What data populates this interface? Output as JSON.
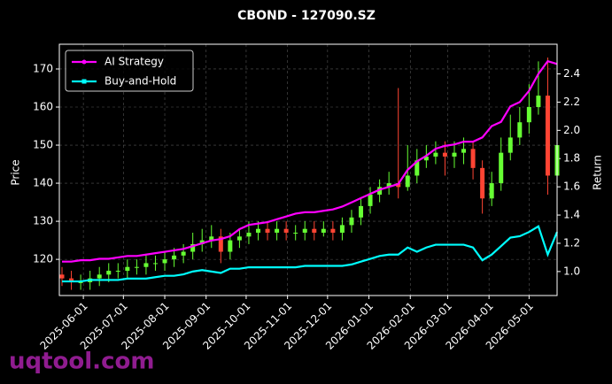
{
  "chart_data": {
    "type": "candlestick",
    "title": "CBOND - 127090.SZ",
    "ylabel": "Price",
    "y2label": "Return",
    "watermark": "uqtool.com",
    "grid": true,
    "legend": "upper left",
    "x": [
      "2025-05-16",
      "2025-05-23",
      "2025-05-30",
      "2025-06-06",
      "2025-06-13",
      "2025-06-20",
      "2025-06-27",
      "2025-07-04",
      "2025-07-11",
      "2025-07-18",
      "2025-07-25",
      "2025-08-01",
      "2025-08-08",
      "2025-08-15",
      "2025-08-22",
      "2025-08-29",
      "2025-09-05",
      "2025-09-12",
      "2025-09-19",
      "2025-09-26",
      "2025-10-03",
      "2025-10-10",
      "2025-10-17",
      "2025-10-24",
      "2025-10-31",
      "2025-11-07",
      "2025-11-14",
      "2025-11-21",
      "2025-11-28",
      "2025-12-05",
      "2025-12-12",
      "2025-12-19",
      "2025-12-26",
      "2026-01-02",
      "2026-01-09",
      "2026-01-16",
      "2026-01-23",
      "2026-01-30",
      "2026-02-06",
      "2026-02-13",
      "2026-02-20",
      "2026-02-27",
      "2026-03-06",
      "2026-03-13",
      "2026-03-20",
      "2026-03-27",
      "2026-04-03",
      "2026-04-10",
      "2026-04-17",
      "2026-04-24",
      "2026-05-01",
      "2026-05-08",
      "2026-05-15",
      "2026-05-22"
    ],
    "xlim": [
      "2025-05-14",
      "2026-05-22"
    ],
    "xticks": [
      "2025-06-01",
      "2025-07-01",
      "2025-08-01",
      "2025-09-01",
      "2025-10-01",
      "2025-11-01",
      "2025-12-01",
      "2026-01-01",
      "2026-02-01",
      "2026-03-01",
      "2026-04-01",
      "2026-05-01"
    ],
    "ylim": [
      110.5,
      176.5
    ],
    "yticks": [
      120,
      130,
      140,
      150,
      160,
      170
    ],
    "y2lim": [
      0.83,
      2.61
    ],
    "y2ticks": [
      {
        "value": 1,
        "label": "1.0"
      },
      1.2,
      1.4,
      1.6,
      1.8,
      {
        "value": 2,
        "label": "2.0"
      },
      2.2,
      2.4
    ],
    "up_color": "#66ff33",
    "down_color": "#ff4433",
    "open": [
      116,
      115,
      114,
      114,
      115,
      116,
      117,
      117,
      118,
      118,
      119,
      119,
      120,
      121,
      122,
      124,
      125,
      126,
      122,
      125,
      126,
      127,
      128,
      127,
      128,
      127,
      127,
      128,
      127,
      128,
      127,
      129,
      131,
      134,
      137,
      139,
      140,
      139,
      142,
      146,
      147,
      148,
      147,
      148,
      149,
      144,
      136,
      140,
      148,
      152,
      156,
      160,
      163,
      142
    ],
    "high": [
      118,
      117,
      116,
      117,
      118,
      119,
      119,
      120,
      120,
      121,
      121,
      122,
      123,
      124,
      127,
      128,
      129,
      128,
      127,
      128,
      130,
      130,
      130,
      130,
      130,
      129,
      130,
      130,
      130,
      130,
      131,
      133,
      136,
      139,
      141,
      143,
      165,
      150,
      149,
      150,
      151,
      151,
      151,
      152,
      151,
      146,
      143,
      152,
      158,
      160,
      166,
      172,
      173,
      165
    ],
    "low": [
      113,
      112,
      112,
      112,
      113,
      114,
      115,
      115,
      116,
      116,
      117,
      117,
      118,
      119,
      120,
      122,
      123,
      119,
      120,
      123,
      124,
      125,
      125,
      125,
      125,
      125,
      125,
      125,
      126,
      125,
      125,
      127,
      129,
      132,
      135,
      137,
      136,
      138,
      140,
      144,
      145,
      142,
      144,
      145,
      141,
      132,
      134,
      138,
      146,
      150,
      153,
      158,
      137,
      138
    ],
    "close": [
      115,
      114,
      114,
      115,
      116,
      117,
      117,
      118,
      118,
      119,
      119,
      120,
      121,
      122,
      124,
      125,
      126,
      122,
      125,
      126,
      127,
      128,
      127,
      128,
      127,
      127,
      128,
      127,
      128,
      127,
      129,
      131,
      134,
      137,
      139,
      140,
      139,
      142,
      146,
      147,
      148,
      147,
      148,
      149,
      144,
      136,
      140,
      148,
      152,
      156,
      160,
      163,
      142,
      150
    ],
    "series": [
      {
        "name": "AI Strategy",
        "color": "#ff00ff",
        "axis": "y2",
        "marker": "circle",
        "values": [
          1.07,
          1.07,
          1.08,
          1.08,
          1.09,
          1.09,
          1.1,
          1.11,
          1.11,
          1.12,
          1.13,
          1.14,
          1.15,
          1.16,
          1.18,
          1.2,
          1.22,
          1.23,
          1.25,
          1.3,
          1.33,
          1.34,
          1.35,
          1.37,
          1.39,
          1.41,
          1.42,
          1.42,
          1.43,
          1.44,
          1.46,
          1.49,
          1.52,
          1.55,
          1.58,
          1.6,
          1.62,
          1.72,
          1.78,
          1.82,
          1.87,
          1.89,
          1.9,
          1.92,
          1.92,
          1.95,
          2.03,
          2.06,
          2.17,
          2.2,
          2.28,
          2.4,
          2.49,
          2.47
        ]
      },
      {
        "name": "Buy-and-Hold",
        "color": "#00ffff",
        "axis": "y2",
        "marker": "square",
        "values": [
          0.93,
          0.93,
          0.93,
          0.94,
          0.94,
          0.94,
          0.94,
          0.95,
          0.95,
          0.95,
          0.96,
          0.97,
          0.97,
          0.98,
          1.0,
          1.01,
          1.0,
          0.99,
          1.02,
          1.02,
          1.03,
          1.03,
          1.03,
          1.03,
          1.03,
          1.03,
          1.04,
          1.04,
          1.04,
          1.04,
          1.04,
          1.05,
          1.07,
          1.09,
          1.11,
          1.12,
          1.12,
          1.17,
          1.14,
          1.17,
          1.19,
          1.19,
          1.19,
          1.19,
          1.17,
          1.08,
          1.12,
          1.18,
          1.24,
          1.25,
          1.28,
          1.32,
          1.12,
          1.28
        ]
      }
    ]
  }
}
